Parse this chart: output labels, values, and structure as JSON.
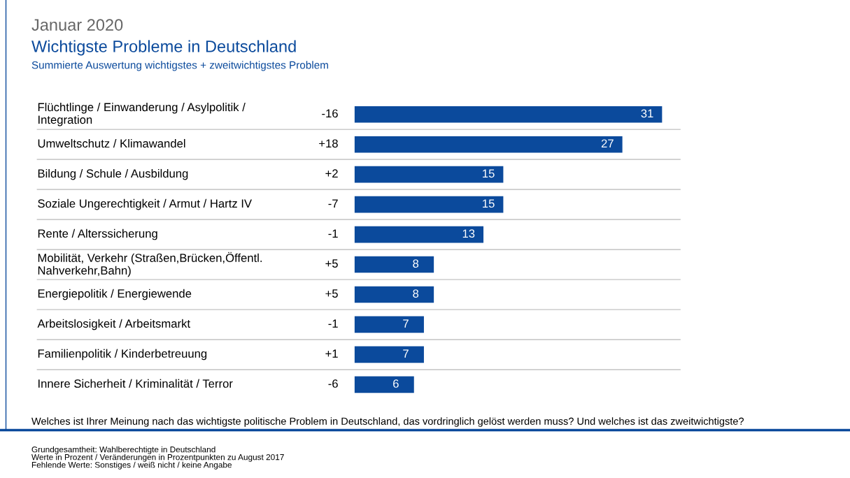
{
  "chart_data": {
    "type": "bar",
    "orientation": "horizontal",
    "title": "Januar 2020",
    "subtitle": "Wichtigste Probleme in Deutschland",
    "categories": [
      "Flüchtlinge / Einwanderung / Asylpolitik /\nIntegration",
      "Umweltschutz / Klimawandel",
      "Bildung / Schule / Ausbildung",
      "Soziale Ungerechtigkeit / Armut / Hartz IV",
      "Rente / Alterssicherung",
      "Mobilität, Verkehr (Straßen,Brücken,Öffentl.\nNahverkehr,Bahn)",
      "Energiepolitik / Energiewende",
      "Arbeitslosigkeit / Arbeitsmarkt",
      "Familienpolitik / Kinderbetreuung",
      "Innere Sicherheit / Kriminalität / Terror"
    ],
    "values": [
      31,
      27,
      15,
      15,
      13,
      8,
      8,
      7,
      7,
      6
    ],
    "color": "#0b4a9c",
    "data_labels": true,
    "annotations": [
      "Summierte Auswertung wichtigstes + zweitwichtigstes Problem",
      "Welches ist Ihrer Meinung nach das wichtigste politische Problem in Deutschland, das vordringlich gelöst werden muss? Und welches ist das zweitwichtigste?",
      "Grundgesamtheit: Wahlberechtigte in Deutschland\nWerte in Prozent / Veränderungen in Prozentpunkten zu August 2017\nFehlende Werte: Sonstiges / weiß nicht / keine Angabe",
      "-16",
      "+18",
      "+2",
      "-7",
      "-1",
      "+5",
      "+5",
      "-1",
      "+1",
      "-6"
    ]
  }
}
